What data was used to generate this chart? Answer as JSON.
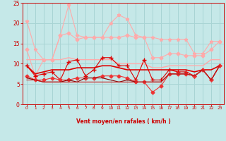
{
  "xlabel": "Vent moyen/en rafales ( km/h )",
  "xlim": [
    -0.5,
    23.5
  ],
  "ylim": [
    0,
    25
  ],
  "xticks": [
    0,
    1,
    2,
    3,
    4,
    5,
    6,
    7,
    8,
    9,
    10,
    11,
    12,
    13,
    14,
    15,
    16,
    17,
    18,
    19,
    20,
    21,
    22,
    23
  ],
  "yticks": [
    0,
    5,
    10,
    15,
    20,
    25
  ],
  "background_color": "#c5e8e8",
  "grid_color": "#a8d4d4",
  "series": [
    {
      "y": [
        20.5,
        13.5,
        11.0,
        11.0,
        17.0,
        24.5,
        17.0,
        16.5,
        16.5,
        16.5,
        20.0,
        22.0,
        21.0,
        17.0,
        16.5,
        16.5,
        16.0,
        16.0,
        16.0,
        16.0,
        12.5,
        12.5,
        15.5,
        15.5
      ],
      "color": "#ffaaaa",
      "marker": "*",
      "lw": 0.8,
      "ms": 3.5
    },
    {
      "y": [
        13.5,
        7.0,
        11.0,
        11.0,
        17.0,
        17.5,
        16.0,
        16.5,
        16.5,
        16.5,
        16.5,
        16.5,
        17.0,
        16.5,
        16.5,
        11.5,
        11.5,
        12.5,
        12.5,
        12.0,
        12.0,
        12.0,
        13.5,
        15.5
      ],
      "color": "#ffaaaa",
      "marker": "D",
      "lw": 0.8,
      "ms": 2.5
    },
    {
      "y": [
        11.0,
        11.0,
        11.0,
        11.0,
        11.0,
        11.5,
        11.0,
        11.0,
        11.0,
        11.0,
        11.0,
        10.0,
        10.0,
        10.0,
        10.0,
        9.0,
        9.0,
        9.5,
        9.5,
        9.5,
        9.5,
        9.5,
        11.0,
        11.0
      ],
      "color": "#ffaaaa",
      "marker": null,
      "lw": 1.0,
      "ms": 0
    },
    {
      "y": [
        9.5,
        7.0,
        7.5,
        8.0,
        6.0,
        10.5,
        11.0,
        7.0,
        8.5,
        11.5,
        11.5,
        9.5,
        9.5,
        6.0,
        11.0,
        6.0,
        6.0,
        8.5,
        8.0,
        8.0,
        7.0,
        8.5,
        6.0,
        9.5
      ],
      "color": "#dd0000",
      "marker": "+",
      "lw": 0.8,
      "ms": 4.5
    },
    {
      "y": [
        9.5,
        7.5,
        8.0,
        8.5,
        8.5,
        8.5,
        9.0,
        9.0,
        9.0,
        9.5,
        9.5,
        9.0,
        8.5,
        8.5,
        8.5,
        8.5,
        8.5,
        8.5,
        8.5,
        8.5,
        8.0,
        8.5,
        8.5,
        9.5
      ],
      "color": "#dd0000",
      "marker": null,
      "lw": 1.2,
      "ms": 0
    },
    {
      "y": [
        7.0,
        6.0,
        6.0,
        6.5,
        6.0,
        6.0,
        6.5,
        6.5,
        6.5,
        7.0,
        7.0,
        7.0,
        6.5,
        5.5,
        5.5,
        3.0,
        4.5,
        7.5,
        7.5,
        7.5,
        7.0,
        8.5,
        6.0,
        9.5
      ],
      "color": "#ee3333",
      "marker": "D",
      "lw": 0.8,
      "ms": 2.5
    },
    {
      "y": [
        6.5,
        6.0,
        5.5,
        5.5,
        5.5,
        6.0,
        5.5,
        6.5,
        6.5,
        6.5,
        6.0,
        5.5,
        6.0,
        5.5,
        5.5,
        5.5,
        5.5,
        7.5,
        7.5,
        7.5,
        7.0,
        8.5,
        6.0,
        9.5
      ],
      "color": "#880000",
      "marker": null,
      "lw": 0.8,
      "ms": 0
    },
    {
      "y": [
        6.0,
        6.0,
        5.5,
        5.5,
        5.5,
        5.5,
        5.5,
        5.5,
        5.5,
        5.5,
        5.5,
        5.5,
        5.5,
        5.5,
        5.5,
        5.5,
        5.5,
        7.5,
        7.5,
        7.5,
        7.0,
        8.5,
        6.0,
        9.5
      ],
      "color": "#cc2222",
      "marker": null,
      "lw": 0.8,
      "ms": 0
    }
  ],
  "tick_color": "#cc0000",
  "label_color": "#cc0000",
  "axis_color": "#cc0000"
}
